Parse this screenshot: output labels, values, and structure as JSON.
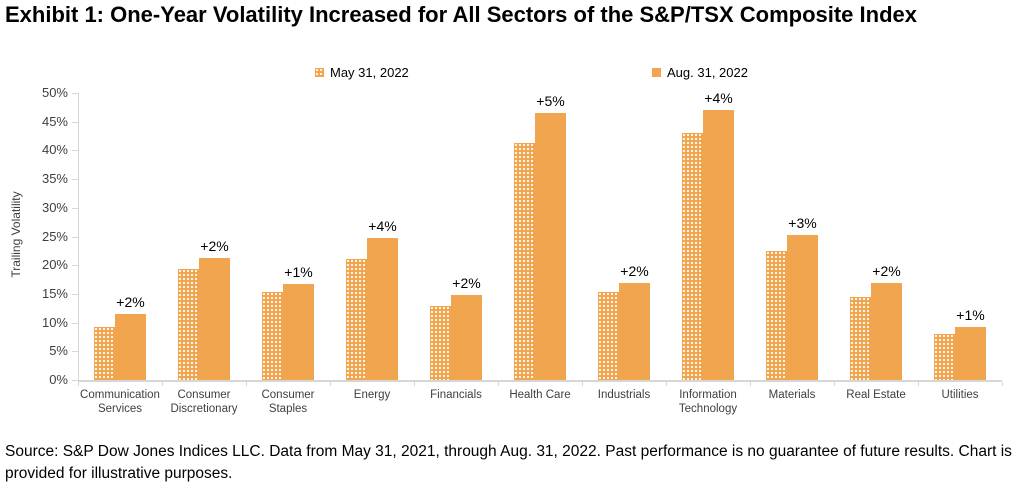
{
  "title": "Exhibit 1: One-Year Volatility Increased for All Sectors of the S&P/TSX Composite Index",
  "source": "Source: S&P Dow Jones Indices LLC. Data from May 31, 2021, through Aug. 31, 2022. Past performance is no guarantee of future results. Chart is provided for illustrative purposes.",
  "colors": {
    "bar_orange": "#F0A54E",
    "axis_gray": "#D6D6D6",
    "axis_text": "#3F3F3F"
  },
  "chart_data": {
    "type": "bar",
    "title": "",
    "xlabel": "",
    "ylabel": "Trailing Volatility",
    "ylim": [
      0,
      50
    ],
    "ytick_step": 5,
    "ytick_suffix": "%",
    "grid": false,
    "legend_position": "top",
    "categories": [
      "Communication Services",
      "Consumer Discretionary",
      "Consumer Staples",
      "Energy",
      "Financials",
      "Health Care",
      "Industrials",
      "Information Technology",
      "Materials",
      "Real Estate",
      "Utilities"
    ],
    "series": [
      {
        "name": "May 31, 2022",
        "style": "dotted-pattern",
        "values": [
          9.2,
          19.3,
          15.4,
          21.0,
          12.9,
          41.3,
          15.3,
          43.1,
          22.5,
          14.4,
          8.1
        ]
      },
      {
        "name": "Aug. 31, 2022",
        "style": "solid",
        "values": [
          11.5,
          21.3,
          16.8,
          24.8,
          14.8,
          46.6,
          16.9,
          47.1,
          25.2,
          16.9,
          9.3
        ]
      }
    ],
    "bar_labels": [
      "+2%",
      "+2%",
      "+1%",
      "+4%",
      "+2%",
      "+5%",
      "+2%",
      "+4%",
      "+3%",
      "+2%",
      "+1%"
    ]
  }
}
